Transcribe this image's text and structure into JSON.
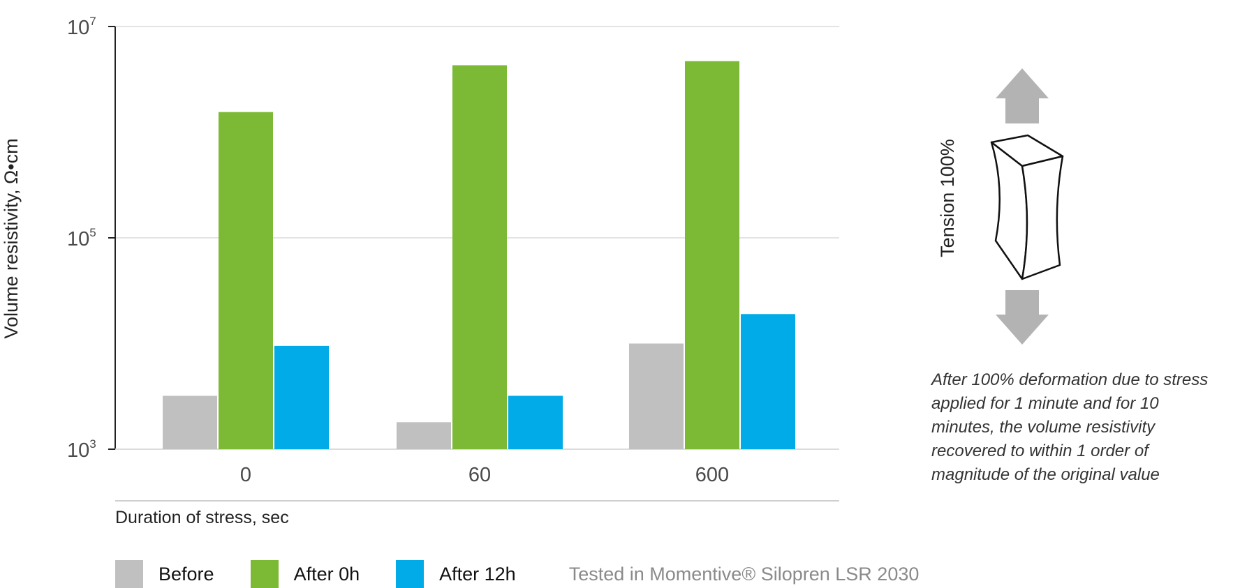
{
  "chart_data": {
    "type": "bar",
    "ylabel": "Volume resistivity, Ω•cm",
    "xlabel": "Duration of stress, sec",
    "y_scale": "log",
    "ylim": [
      1000,
      10000000
    ],
    "y_ticks": [
      {
        "value": 1000,
        "base": "10",
        "exp": "3"
      },
      {
        "value": 100000,
        "base": "10",
        "exp": "5"
      },
      {
        "value": 10000000,
        "base": "10",
        "exp": "7"
      }
    ],
    "grid": true,
    "categories": [
      "0",
      "60",
      "600"
    ],
    "series": [
      {
        "name": "Before",
        "color": "#c0c0c0",
        "values": [
          3200,
          1800,
          10000
        ]
      },
      {
        "name": "After 0h",
        "color": "#7cb934",
        "values": [
          1550000,
          4300000,
          4700000
        ]
      },
      {
        "name": "After 12h",
        "color": "#00abe7",
        "values": [
          9500,
          3200,
          19000
        ]
      }
    ],
    "legend_position": "bottom-left"
  },
  "illustration": {
    "label": "Tension 100%",
    "arrow_color": "#b3b3b3"
  },
  "note": "After 100% deformation due to stress applied for 1 minute and for 10 minutes, the volume resistivity recovered to within 1 order of magnitude of the original value",
  "source": "Tested in Momentive® Silopren LSR 2030"
}
